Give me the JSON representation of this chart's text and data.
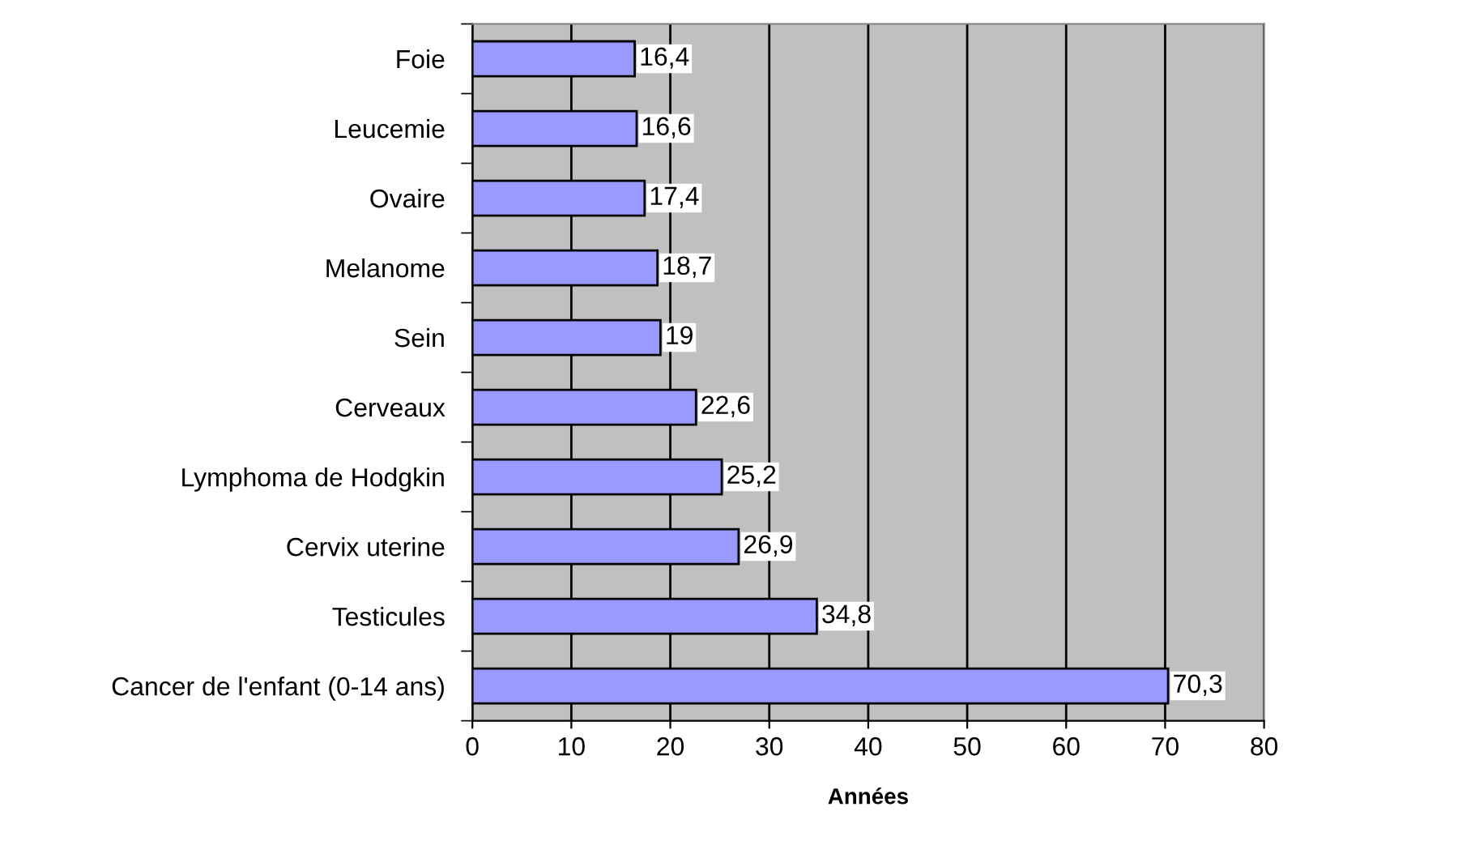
{
  "chart_data": {
    "type": "bar",
    "orientation": "horizontal",
    "xlabel": "Années",
    "categories": [
      "Foie",
      "Leucemie",
      "Ovaire",
      "Melanome",
      "Sein",
      "Cerveaux",
      "Lymphoma de Hodgkin",
      "Cervix uterine",
      "Testicules",
      "Cancer de l'enfant (0-14 ans)"
    ],
    "values": [
      16.4,
      16.6,
      17.4,
      18.7,
      19,
      22.6,
      25.2,
      26.9,
      34.8,
      70.3
    ],
    "value_labels": [
      "16,4",
      "16,6",
      "17,4",
      "18,7",
      "19",
      "22,6",
      "25,2",
      "26,9",
      "34,8",
      "70,3"
    ],
    "color": "#9999ff",
    "xlim": [
      0,
      80
    ],
    "xticks": [
      0,
      10,
      20,
      30,
      40,
      50,
      60,
      70,
      80
    ],
    "grid": "x"
  }
}
